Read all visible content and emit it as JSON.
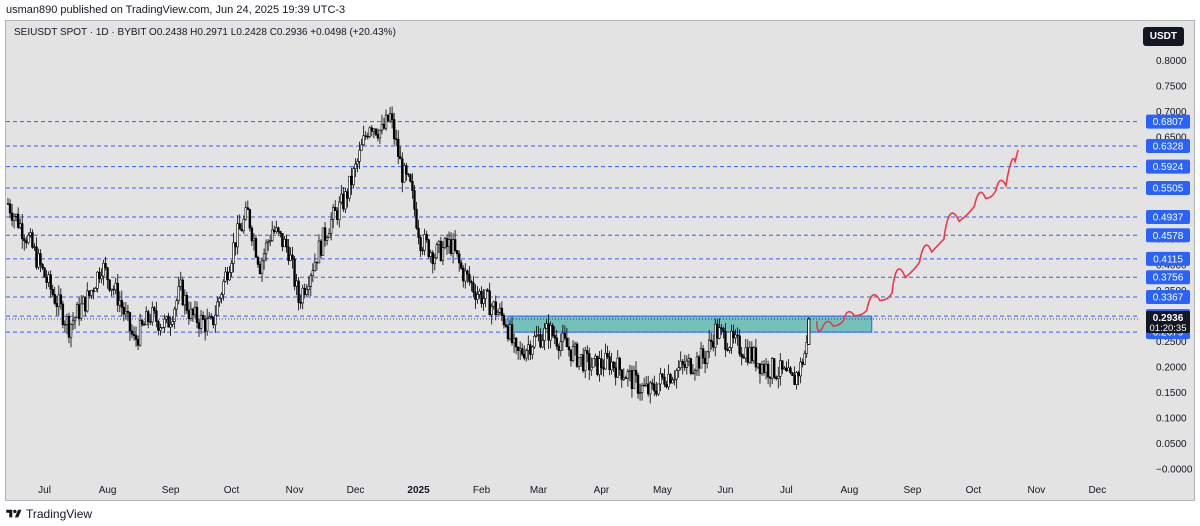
{
  "header": {
    "published_by": "usman890 published on TradingView.com, Jun 24, 2025 19:39 UTC-3"
  },
  "footer": {
    "brand": "TradingView"
  },
  "colors": {
    "background": "#e3e3e3",
    "candle": "#000000",
    "level_line": "#2962ff",
    "label_bg": "#2962ff",
    "zone_fill": "#4db6ac",
    "zone_border": "#2962ff",
    "projection": "#f23645"
  },
  "chart_data": {
    "type": "candlestick",
    "symbol_legend": "SEIUSDT SPOT · 1D · BYBIT  O0.2438  H0.2971  L0.2428  C0.2936  +0.0498 (+20.43%)",
    "currency_button": "USDT",
    "ylim": [
      -0.02,
      0.87
    ],
    "y_ticks": [
      "0.8000",
      "0.7500",
      "0.7000",
      "0.6500",
      "0.5500",
      "0.5000",
      "0.4500",
      "0.4000",
      "0.3500",
      "0.3000",
      "0.2500",
      "0.2000",
      "0.1500",
      "0.1000",
      "0.0500",
      "−0.0000"
    ],
    "y_tick_values": [
      0.8,
      0.75,
      0.7,
      0.65,
      0.55,
      0.5,
      0.45,
      0.4,
      0.35,
      0.3,
      0.25,
      0.2,
      0.15,
      0.1,
      0.05,
      0.0
    ],
    "x_ticks": [
      {
        "label": "Jul",
        "day": 18
      },
      {
        "label": "Aug",
        "day": 49
      },
      {
        "label": "Sep",
        "day": 80
      },
      {
        "label": "Oct",
        "day": 110
      },
      {
        "label": "Nov",
        "day": 141
      },
      {
        "label": "Dec",
        "day": 171
      },
      {
        "label": "2025",
        "day": 202,
        "bold": true
      },
      {
        "label": "Feb",
        "day": 233
      },
      {
        "label": "Mar",
        "day": 261
      },
      {
        "label": "Apr",
        "day": 292
      },
      {
        "label": "May",
        "day": 322
      },
      {
        "label": "Jun",
        "day": 353
      },
      {
        "label": "Jul",
        "day": 383
      },
      {
        "label": "Aug",
        "day": 414
      },
      {
        "label": "Sep",
        "day": 445
      },
      {
        "label": "Oct",
        "day": 475
      },
      {
        "label": "Nov",
        "day": 506
      },
      {
        "label": "Dec",
        "day": 536
      }
    ],
    "levels": [
      "0.6807",
      "0.6328",
      "0.5924",
      "0.5505",
      "0.4937",
      "0.4578",
      "0.4115",
      "0.3756",
      "0.3367",
      "0.2993",
      "0.2679"
    ],
    "level_values": [
      0.6807,
      0.6328,
      0.5924,
      0.5505,
      0.4937,
      0.4578,
      0.4115,
      0.3756,
      0.3367,
      0.2993,
      0.2679
    ],
    "last_price": {
      "value": "0.2936",
      "countdown": "01:20:35",
      "price": 0.2936
    },
    "zone": {
      "start_day": 246,
      "end_day": 425,
      "low": 0.2679,
      "high": 0.2993
    },
    "series": [
      {
        "day": 0,
        "close": 0.52
      },
      {
        "day": 10,
        "close": 0.45
      },
      {
        "day": 20,
        "close": 0.36
      },
      {
        "day": 30,
        "close": 0.28
      },
      {
        "day": 40,
        "close": 0.34
      },
      {
        "day": 46,
        "close": 0.4
      },
      {
        "day": 55,
        "close": 0.33
      },
      {
        "day": 62,
        "close": 0.25
      },
      {
        "day": 70,
        "close": 0.3
      },
      {
        "day": 78,
        "close": 0.28
      },
      {
        "day": 85,
        "close": 0.35
      },
      {
        "day": 90,
        "close": 0.3
      },
      {
        "day": 100,
        "close": 0.28
      },
      {
        "day": 105,
        "close": 0.35
      },
      {
        "day": 112,
        "close": 0.45
      },
      {
        "day": 118,
        "close": 0.5
      },
      {
        "day": 124,
        "close": 0.4
      },
      {
        "day": 130,
        "close": 0.47
      },
      {
        "day": 138,
        "close": 0.43
      },
      {
        "day": 143,
        "close": 0.33
      },
      {
        "day": 150,
        "close": 0.4
      },
      {
        "day": 158,
        "close": 0.48
      },
      {
        "day": 166,
        "close": 0.53
      },
      {
        "day": 172,
        "close": 0.6
      },
      {
        "day": 178,
        "close": 0.68
      },
      {
        "day": 184,
        "close": 0.66
      },
      {
        "day": 188,
        "close": 0.69
      },
      {
        "day": 194,
        "close": 0.58
      },
      {
        "day": 198,
        "close": 0.55
      },
      {
        "day": 203,
        "close": 0.45
      },
      {
        "day": 210,
        "close": 0.42
      },
      {
        "day": 218,
        "close": 0.44
      },
      {
        "day": 223,
        "close": 0.39
      },
      {
        "day": 230,
        "close": 0.35
      },
      {
        "day": 238,
        "close": 0.32
      },
      {
        "day": 245,
        "close": 0.29
      },
      {
        "day": 250,
        "close": 0.22
      },
      {
        "day": 258,
        "close": 0.25
      },
      {
        "day": 266,
        "close": 0.27
      },
      {
        "day": 272,
        "close": 0.25
      },
      {
        "day": 280,
        "close": 0.22
      },
      {
        "day": 288,
        "close": 0.2
      },
      {
        "day": 296,
        "close": 0.21
      },
      {
        "day": 303,
        "close": 0.19
      },
      {
        "day": 311,
        "close": 0.16
      },
      {
        "day": 316,
        "close": 0.15
      },
      {
        "day": 323,
        "close": 0.18
      },
      {
        "day": 333,
        "close": 0.2
      },
      {
        "day": 343,
        "close": 0.22
      },
      {
        "day": 348,
        "close": 0.27
      },
      {
        "day": 355,
        "close": 0.25
      },
      {
        "day": 364,
        "close": 0.23
      },
      {
        "day": 372,
        "close": 0.2
      },
      {
        "day": 380,
        "close": 0.19
      },
      {
        "day": 386,
        "close": 0.17
      },
      {
        "day": 390,
        "close": 0.2
      },
      {
        "day": 393,
        "close": 0.24
      },
      {
        "day": 394,
        "close": 0.2936
      }
    ],
    "projection": [
      {
        "day": 398,
        "value": 0.29
      },
      {
        "day": 403,
        "value": 0.26
      },
      {
        "day": 409,
        "value": 0.3
      },
      {
        "day": 413,
        "value": 0.28
      },
      {
        "day": 420,
        "value": 0.32
      },
      {
        "day": 425,
        "value": 0.3
      },
      {
        "day": 433,
        "value": 0.36
      },
      {
        "day": 437,
        "value": 0.33
      },
      {
        "day": 446,
        "value": 0.42
      },
      {
        "day": 451,
        "value": 0.39
      },
      {
        "day": 458,
        "value": 0.46
      },
      {
        "day": 463,
        "value": 0.44
      },
      {
        "day": 473,
        "value": 0.53
      },
      {
        "day": 478,
        "value": 0.5
      },
      {
        "day": 484,
        "value": 0.56
      },
      {
        "day": 488,
        "value": 0.53
      },
      {
        "day": 494,
        "value": 0.58
      },
      {
        "day": 497,
        "value": 0.625
      }
    ]
  }
}
